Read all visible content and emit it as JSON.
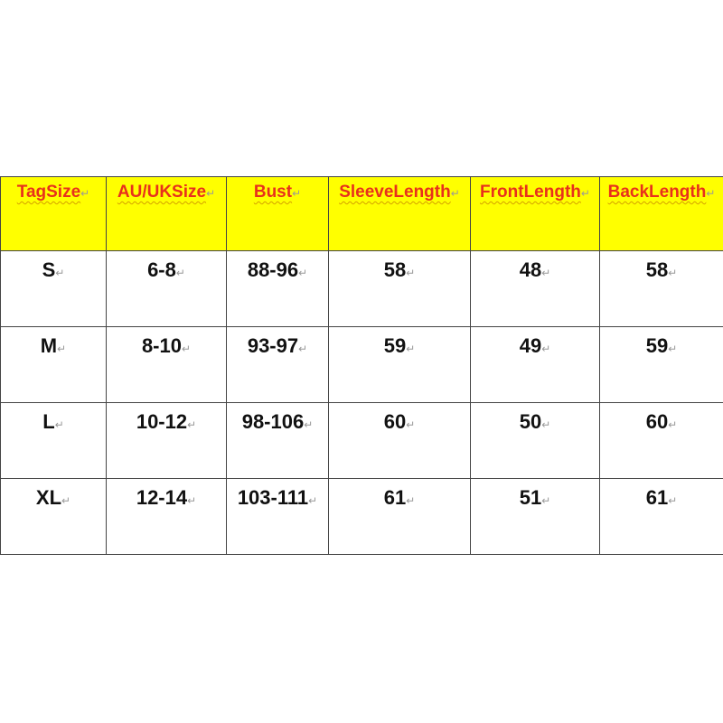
{
  "table": {
    "headers": [
      "TagSize",
      "AU/UKSize",
      "Bust",
      "SleeveLength",
      "FrontLength",
      "BackLength"
    ],
    "rows": [
      [
        "S",
        "6-8",
        "88-96",
        "58",
        "48",
        "58"
      ],
      [
        "M",
        "8-10",
        "93-97",
        "59",
        "49",
        "59"
      ],
      [
        "L",
        "10-12",
        "98-106",
        "60",
        "50",
        "60"
      ],
      [
        "XL",
        "12-14",
        "103-111",
        "61",
        "51",
        "61"
      ]
    ],
    "header_bg": "#ffff00",
    "header_text_color": "#e8301c"
  }
}
